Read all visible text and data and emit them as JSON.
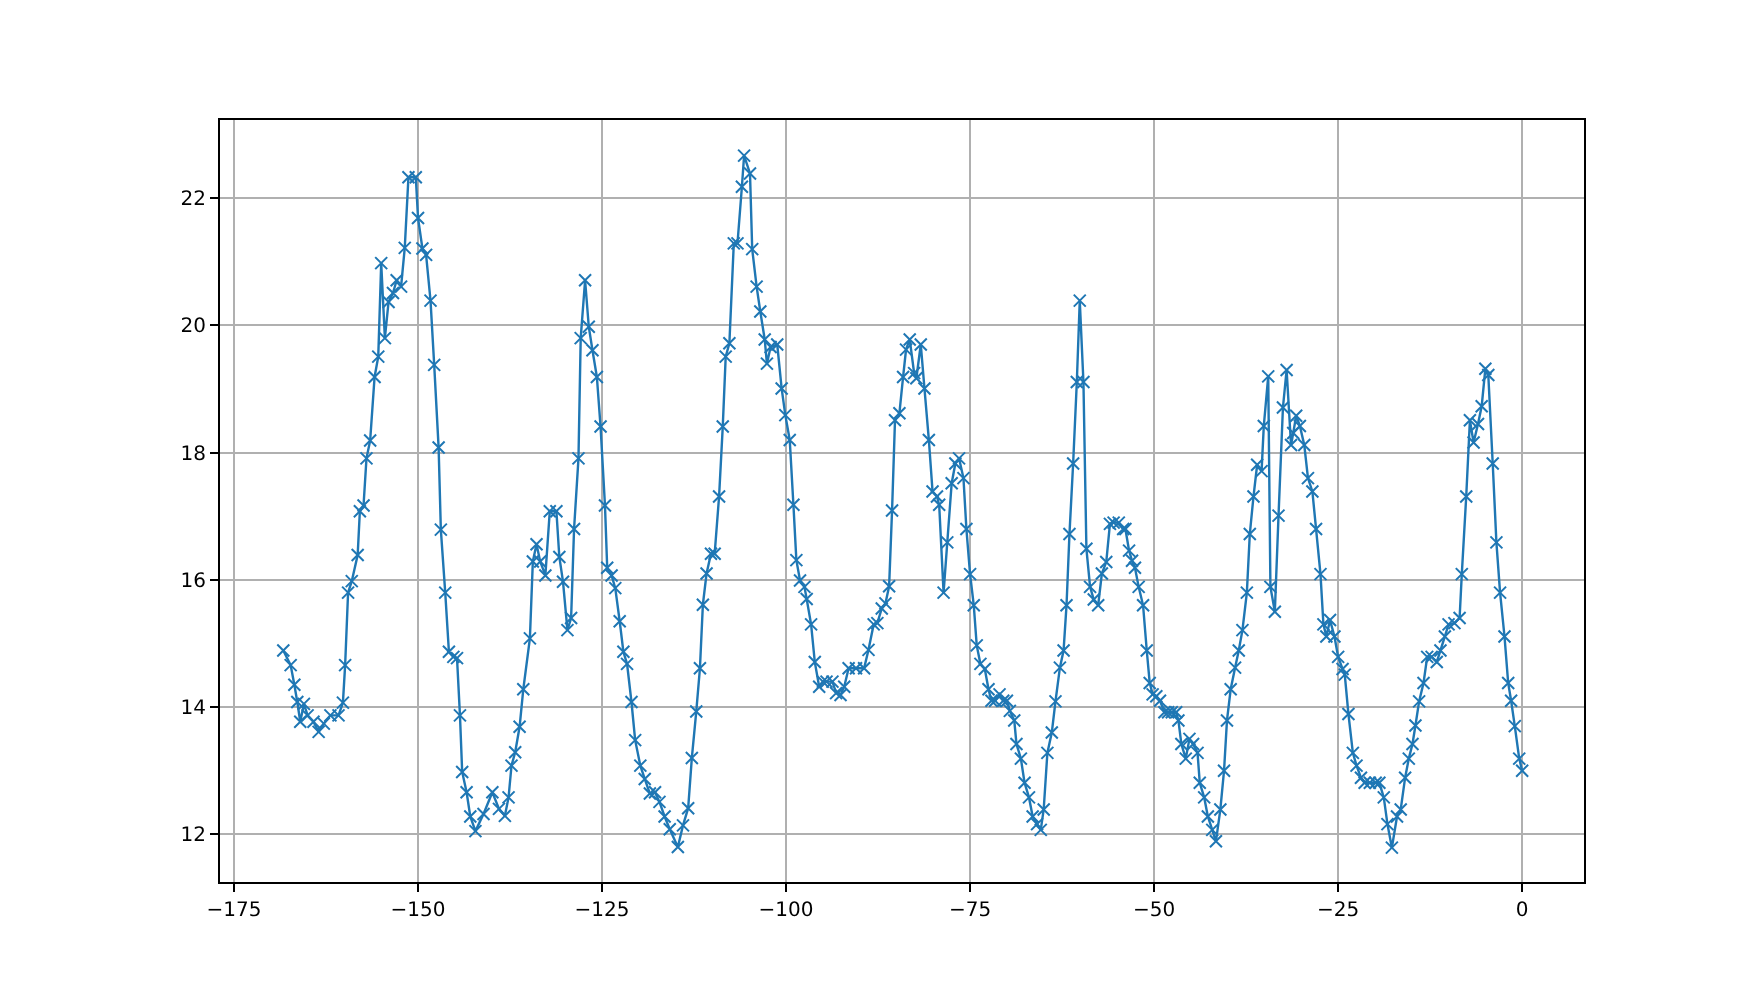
{
  "chart_data": {
    "type": "line",
    "x": [
      -168.3,
      -167.3,
      -166.8,
      -166.4,
      -166.0,
      -165.5,
      -165.0,
      -164.2,
      -163.5,
      -162.8,
      -161.9,
      -160.8,
      -160.2,
      -159.9,
      -159.5,
      -159.0,
      -158.2,
      -157.9,
      -157.4,
      -157.0,
      -156.5,
      -155.9,
      -155.4,
      -155.0,
      -154.5,
      -154.0,
      -153.4,
      -152.9,
      -152.3,
      -151.8,
      -151.3,
      -150.3,
      -150.0,
      -149.4,
      -148.9,
      -148.3,
      -147.8,
      -147.2,
      -146.9,
      -146.3,
      -145.8,
      -145.2,
      -144.7,
      -144.3,
      -144.0,
      -143.4,
      -142.9,
      -142.2,
      -141.1,
      -139.9,
      -139.0,
      -138.2,
      -137.7,
      -137.3,
      -136.8,
      -136.2,
      -135.7,
      -134.8,
      -134.4,
      -133.9,
      -133.4,
      -132.7,
      -132.1,
      -131.2,
      -130.8,
      -130.3,
      -129.7,
      -129.2,
      -128.8,
      -128.2,
      -127.9,
      -127.3,
      -126.8,
      -126.3,
      -125.7,
      -125.2,
      -124.6,
      -124.3,
      -123.7,
      -123.2,
      -122.6,
      -122.1,
      -121.6,
      -121.0,
      -120.5,
      -119.8,
      -119.2,
      -118.5,
      -117.8,
      -117.2,
      -116.5,
      -115.8,
      -114.7,
      -114.0,
      -113.3,
      -112.8,
      -112.2,
      -111.7,
      -111.3,
      -110.8,
      -110.2,
      -109.7,
      -109.1,
      -108.6,
      -108.2,
      -107.7,
      -107.1,
      -106.6,
      -106.0,
      -105.7,
      -104.9,
      -104.6,
      -104.0,
      -103.5,
      -102.9,
      -102.6,
      -102.1,
      -101.2,
      -100.6,
      -100.1,
      -99.5,
      -99.0,
      -98.6,
      -98.1,
      -97.5,
      -97.2,
      -96.6,
      -96.1,
      -95.5,
      -95.0,
      -94.5,
      -93.7,
      -93.2,
      -92.6,
      -92.1,
      -91.5,
      -90.5,
      -89.4,
      -88.8,
      -88.1,
      -87.6,
      -87.0,
      -86.5,
      -86.0,
      -85.6,
      -85.2,
      -84.6,
      -84.1,
      -83.7,
      -83.2,
      -82.6,
      -82.3,
      -81.7,
      -81.2,
      -80.6,
      -80.1,
      -79.5,
      -79.2,
      -78.6,
      -78.1,
      -77.5,
      -77.0,
      -76.5,
      -75.9,
      -75.5,
      -75.0,
      -74.5,
      -74.1,
      -73.6,
      -73.0,
      -72.5,
      -72.1,
      -71.6,
      -71.0,
      -70.5,
      -70.0,
      -69.6,
      -69.0,
      -68.7,
      -68.1,
      -67.6,
      -67.0,
      -66.5,
      -65.9,
      -65.4,
      -65.0,
      -64.5,
      -63.9,
      -63.4,
      -62.8,
      -62.3,
      -61.9,
      -61.5,
      -61.0,
      -60.5,
      -60.1,
      -59.6,
      -59.2,
      -58.7,
      -58.2,
      -57.6,
      -57.1,
      -56.5,
      -56.0,
      -55.5,
      -54.8,
      -54.2,
      -53.9,
      -53.4,
      -53.0,
      -52.6,
      -52.1,
      -51.5,
      -51.0,
      -50.6,
      -50.2,
      -49.7,
      -49.2,
      -48.6,
      -48.1,
      -47.6,
      -47.0,
      -46.7,
      -46.3,
      -45.7,
      -45.2,
      -44.7,
      -44.1,
      -43.8,
      -43.2,
      -42.7,
      -42.1,
      -41.6,
      -41.0,
      -40.5,
      -40.1,
      -39.6,
      -39.0,
      -38.5,
      -38.0,
      -37.4,
      -37.0,
      -36.5,
      -36.0,
      -35.4,
      -35.1,
      -34.5,
      -34.2,
      -33.6,
      -33.1,
      -32.5,
      -32.0,
      -31.4,
      -31.1,
      -30.7,
      -30.2,
      -29.6,
      -29.1,
      -28.5,
      -28.0,
      -27.4,
      -27.0,
      -26.6,
      -26.1,
      -25.5,
      -25.0,
      -24.4,
      -24.1,
      -23.6,
      -23.0,
      -22.5,
      -21.9,
      -21.4,
      -20.7,
      -19.9,
      -19.4,
      -18.8,
      -18.3,
      -17.7,
      -17.0,
      -16.5,
      -15.9,
      -15.4,
      -14.9,
      -14.5,
      -14.0,
      -13.4,
      -12.9,
      -12.3,
      -11.6,
      -11.1,
      -10.5,
      -10.0,
      -9.2,
      -8.5,
      -8.2,
      -7.6,
      -7.1,
      -6.6,
      -6.0,
      -5.5,
      -5.0,
      -4.6,
      -4.0,
      -3.5,
      -3.0,
      -2.4,
      -1.9,
      -1.5,
      -1.0,
      -0.4,
      0.0
    ],
    "series": [
      {
        "color": "#1f77b4",
        "values": [
          14.89,
          14.66,
          14.35,
          14.08,
          13.77,
          14.05,
          13.87,
          13.77,
          13.61,
          13.74,
          13.87,
          13.87,
          14.07,
          14.66,
          15.8,
          15.98,
          16.39,
          17.08,
          17.17,
          17.91,
          18.19,
          19.19,
          19.51,
          20.98,
          19.8,
          20.37,
          20.51,
          20.71,
          20.61,
          21.22,
          22.33,
          22.33,
          21.69,
          21.21,
          21.11,
          20.39,
          19.38,
          18.08,
          16.79,
          15.8,
          14.87,
          14.79,
          14.77,
          13.87,
          12.98,
          12.66,
          12.28,
          12.05,
          12.32,
          12.66,
          12.4,
          12.29,
          12.58,
          13.08,
          13.29,
          13.69,
          14.28,
          15.08,
          16.29,
          16.56,
          16.29,
          16.07,
          17.08,
          17.08,
          16.36,
          15.97,
          15.21,
          15.4,
          16.8,
          17.91,
          19.8,
          20.71,
          19.98,
          19.61,
          19.19,
          18.41,
          17.17,
          16.19,
          16.07,
          15.87,
          15.35,
          14.87,
          14.68,
          14.08,
          13.48,
          13.08,
          12.87,
          12.64,
          12.66,
          12.51,
          12.28,
          12.08,
          11.8,
          12.14,
          12.41,
          13.2,
          13.93,
          14.61,
          15.61,
          16.1,
          16.41,
          16.41,
          17.31,
          18.41,
          19.51,
          19.72,
          21.29,
          21.29,
          22.18,
          22.67,
          22.39,
          21.2,
          20.61,
          20.22,
          19.78,
          19.4,
          19.66,
          19.7,
          19.01,
          18.59,
          18.2,
          17.18,
          16.31,
          15.99,
          15.89,
          15.7,
          15.3,
          14.71,
          14.32,
          14.4,
          14.4,
          14.4,
          14.22,
          14.19,
          14.32,
          14.61,
          14.61,
          14.61,
          14.9,
          15.3,
          15.32,
          15.55,
          15.63,
          15.9,
          17.09,
          18.51,
          18.62,
          19.19,
          19.62,
          19.78,
          19.25,
          19.17,
          19.7,
          19.01,
          18.2,
          17.39,
          17.31,
          17.18,
          15.8,
          16.59,
          17.52,
          17.83,
          17.91,
          17.6,
          16.8,
          16.09,
          15.6,
          14.97,
          14.68,
          14.6,
          14.28,
          14.1,
          14.1,
          14.2,
          14.1,
          14.1,
          13.94,
          13.79,
          13.42,
          13.19,
          12.81,
          12.58,
          12.28,
          12.16,
          12.07,
          12.39,
          13.28,
          13.6,
          14.09,
          14.62,
          14.89,
          15.6,
          16.72,
          17.83,
          19.11,
          20.39,
          19.11,
          16.49,
          15.89,
          15.69,
          15.6,
          16.1,
          16.28,
          16.88,
          16.9,
          16.9,
          16.8,
          16.8,
          16.46,
          16.3,
          16.19,
          15.89,
          15.6,
          14.89,
          14.38,
          14.2,
          14.17,
          14.1,
          13.92,
          13.92,
          13.92,
          13.92,
          13.79,
          13.42,
          13.19,
          13.5,
          13.42,
          13.28,
          12.81,
          12.58,
          12.28,
          12.07,
          11.89,
          12.39,
          13.0,
          13.79,
          14.28,
          14.62,
          14.89,
          15.21,
          15.8,
          16.72,
          17.31,
          17.81,
          17.71,
          18.42,
          19.2,
          15.89,
          15.5,
          17.01,
          18.71,
          19.3,
          18.12,
          18.31,
          18.58,
          18.42,
          18.12,
          17.6,
          17.39,
          16.8,
          16.09,
          15.3,
          15.11,
          15.37,
          15.11,
          14.79,
          14.6,
          14.51,
          13.89,
          13.28,
          13.08,
          12.89,
          12.81,
          12.81,
          12.81,
          12.81,
          12.58,
          12.16,
          11.79,
          12.28,
          12.39,
          12.89,
          13.19,
          13.42,
          13.71,
          14.09,
          14.38,
          14.79,
          14.79,
          14.71,
          14.89,
          15.11,
          15.3,
          15.32,
          15.4,
          16.09,
          17.31,
          18.51,
          18.16,
          18.45,
          18.73,
          19.32,
          19.22,
          17.83,
          16.59,
          15.8,
          15.11,
          14.38,
          14.1,
          13.7,
          13.19,
          13.0
        ]
      }
    ],
    "xlim": [
      -176.9,
      8.4
    ],
    "ylim": [
      11.25,
      23.23
    ],
    "xticks": [
      -175,
      -150,
      -125,
      -100,
      -75,
      -50,
      -25,
      0
    ],
    "yticks": [
      12,
      14,
      16,
      18,
      20,
      22
    ],
    "grid": true,
    "marker": "cross",
    "line_style": "solid"
  }
}
